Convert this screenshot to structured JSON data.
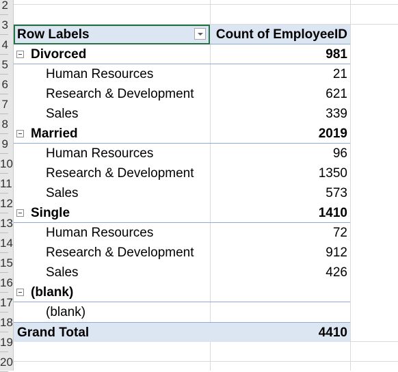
{
  "row_numbers": [
    "2",
    "3",
    "4",
    "5",
    "6",
    "7",
    "8",
    "9",
    "10",
    "11",
    "12",
    "13",
    "14",
    "15",
    "16",
    "17",
    "18",
    "19",
    "20"
  ],
  "pivot": {
    "header": {
      "row_labels": "Row Labels",
      "value_header": "Count of EmployeeID"
    },
    "groups": [
      {
        "label": "Divorced",
        "total": "981",
        "items": [
          {
            "label": "Human Resources",
            "value": "21"
          },
          {
            "label": "Research & Development",
            "value": "621"
          },
          {
            "label": "Sales",
            "value": "339"
          }
        ]
      },
      {
        "label": "Married",
        "total": "2019",
        "items": [
          {
            "label": "Human Resources",
            "value": "96"
          },
          {
            "label": "Research & Development",
            "value": "1350"
          },
          {
            "label": "Sales",
            "value": "573"
          }
        ]
      },
      {
        "label": "Single",
        "total": "1410",
        "items": [
          {
            "label": "Human Resources",
            "value": "72"
          },
          {
            "label": "Research & Development",
            "value": "912"
          },
          {
            "label": "Sales",
            "value": "426"
          }
        ]
      },
      {
        "label": "(blank)",
        "total": "",
        "items": [
          {
            "label": "(blank)",
            "value": ""
          }
        ]
      }
    ],
    "grand_total": {
      "label": "Grand Total",
      "value": "4410"
    }
  }
}
